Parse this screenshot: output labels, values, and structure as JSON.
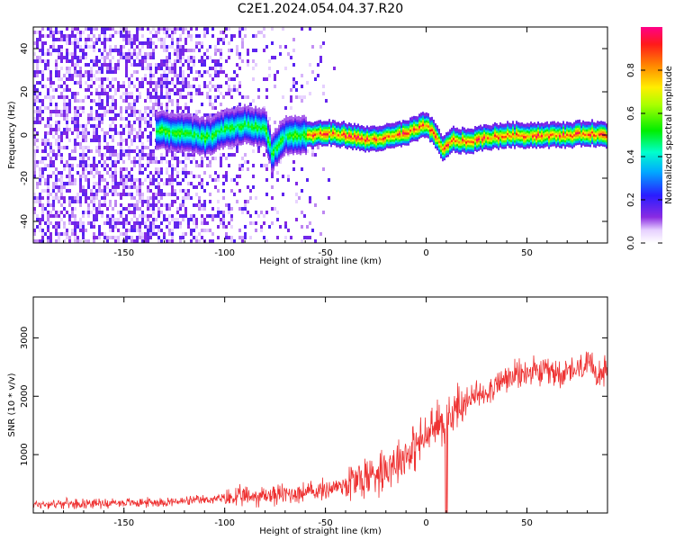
{
  "title": "C2E1.2024.054.04.37.R20",
  "colors": {
    "accent": "#ee3333",
    "axis": "#000000",
    "background": "#ffffff"
  },
  "chart_data": [
    {
      "type": "heatmap",
      "title": "C2E1.2024.054.04.37.R20",
      "xlabel": "Height of straight line (km)",
      "ylabel": "Frequency (Hz)",
      "xlim": [
        -195,
        90
      ],
      "ylim": [
        -50,
        50
      ],
      "xticks": [
        -150,
        -100,
        -50,
        0,
        50
      ],
      "xtick_labels": [
        "-150",
        "-100",
        "-50",
        "0",
        "50"
      ],
      "yticks": [
        -40,
        -20,
        0,
        20,
        40
      ],
      "ytick_labels": [
        "-40",
        "-20",
        "0",
        "20",
        "40"
      ],
      "ridge": {
        "description_x": [
          -130,
          -120,
          -110,
          -100,
          -90,
          -80,
          -77,
          -70,
          -60,
          -50,
          -40,
          -30,
          -20,
          -10,
          0,
          4,
          8,
          12,
          20,
          30,
          40,
          50,
          60,
          70,
          80,
          90
        ],
        "frequency": [
          2,
          1,
          -1,
          3,
          5,
          3,
          -8,
          0,
          0,
          1,
          0,
          -2,
          -1,
          1,
          5,
          0,
          -7,
          -2,
          -3,
          -1,
          0,
          0,
          0,
          0,
          1,
          0
        ]
      },
      "colorbar": {
        "label": "Normalized spectral amplitude",
        "ticks": [
          0.0,
          0.2,
          0.4,
          0.6,
          0.8
        ],
        "tick_labels": [
          "0.0",
          "0.2",
          "0.4",
          "0.6",
          "0.8"
        ],
        "range": [
          0,
          1
        ]
      },
      "grid": false
    },
    {
      "type": "line",
      "xlabel": "Height of straight line (km)",
      "ylabel": "SNR (10 * v/v)",
      "xlim": [
        -195,
        90
      ],
      "ylim": [
        0,
        3700
      ],
      "xticks": [
        -150,
        -100,
        -50,
        0,
        50
      ],
      "xtick_labels": [
        "-150",
        "-100",
        "-50",
        "0",
        "50"
      ],
      "yticks": [
        1000,
        2000,
        3000
      ],
      "ytick_labels": [
        "1000",
        "2000",
        "3000"
      ],
      "series": [
        {
          "color": "#ee3333",
          "x": [
            -195,
            -180,
            -160,
            -140,
            -120,
            -100,
            -80,
            -60,
            -50,
            -40,
            -30,
            -20,
            -10,
            0,
            5,
            10,
            15,
            20,
            30,
            40,
            50,
            60,
            70,
            80,
            90
          ],
          "y": [
            150,
            160,
            170,
            180,
            200,
            250,
            300,
            350,
            400,
            500,
            600,
            800,
            1000,
            1300,
            1500,
            1600,
            1800,
            1900,
            2100,
            2300,
            2400,
            2400,
            2400,
            2500,
            2400
          ]
        }
      ],
      "grid": false
    }
  ]
}
